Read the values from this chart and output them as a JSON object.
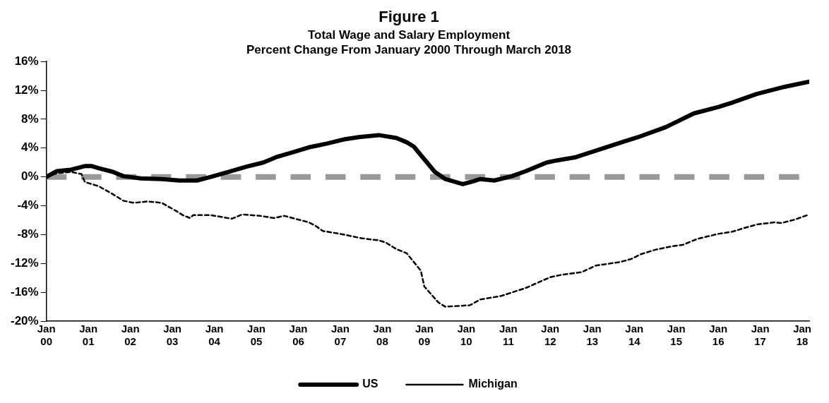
{
  "chart_data": {
    "type": "line",
    "title": "Figure 1",
    "subtitle": "Total Wage and Salary Employment",
    "annotations": [
      "Percent Change From January 2000 Through March 2018"
    ],
    "ylim": [
      -20,
      16
    ],
    "yticks": [
      {
        "value": -20,
        "label": "-20%"
      },
      {
        "value": -16,
        "label": "-16%"
      },
      {
        "value": -12,
        "label": "-12%"
      },
      {
        "value": -8,
        "label": "-8%"
      },
      {
        "value": -4,
        "label": "-4%"
      },
      {
        "value": 0,
        "label": "0%"
      },
      {
        "value": 4,
        "label": "4%"
      },
      {
        "value": 8,
        "label": "8%"
      },
      {
        "value": 12,
        "label": "12%"
      },
      {
        "value": 16,
        "label": "16%"
      }
    ],
    "xlim": [
      "2000-01",
      "2018-03"
    ],
    "xticks": [
      {
        "value": "2000-01",
        "label": "Jan 00"
      },
      {
        "value": "2001-01",
        "label": "Jan 01"
      },
      {
        "value": "2002-01",
        "label": "Jan 02"
      },
      {
        "value": "2003-01",
        "label": "Jan 03"
      },
      {
        "value": "2004-01",
        "label": "Jan 04"
      },
      {
        "value": "2005-01",
        "label": "Jan 05"
      },
      {
        "value": "2006-01",
        "label": "Jan 06"
      },
      {
        "value": "2007-01",
        "label": "Jan 07"
      },
      {
        "value": "2008-01",
        "label": "Jan 08"
      },
      {
        "value": "2009-01",
        "label": "Jan 09"
      },
      {
        "value": "2010-01",
        "label": "Jan 10"
      },
      {
        "value": "2011-01",
        "label": "Jan 11"
      },
      {
        "value": "2012-01",
        "label": "Jan 12"
      },
      {
        "value": "2013-01",
        "label": "Jan 13"
      },
      {
        "value": "2014-01",
        "label": "Jan 14"
      },
      {
        "value": "2015-01",
        "label": "Jan 15"
      },
      {
        "value": "2016-01",
        "label": "Jan 16"
      },
      {
        "value": "2017-01",
        "label": "Jan 17"
      },
      {
        "value": "2018-01",
        "label": "Jan 18"
      }
    ],
    "grid": false,
    "legend": "bottom",
    "marker": "none",
    "ref_lines": [
      {
        "axis": "y",
        "value": 0,
        "color": "#999999",
        "line_style": "dashed"
      }
    ],
    "series": [
      {
        "name": "US",
        "color": "#000000",
        "line_style": "solid",
        "x": [
          "2000-01",
          "2000-04",
          "2000-08",
          "2000-12",
          "2001-02",
          "2001-04",
          "2001-08",
          "2001-11",
          "2002-04",
          "2002-10",
          "2003-03",
          "2003-08",
          "2003-12",
          "2004-05",
          "2004-10",
          "2005-03",
          "2005-07",
          "2005-12",
          "2006-04",
          "2006-09",
          "2007-02",
          "2007-06",
          "2007-12",
          "2008-05",
          "2008-08",
          "2008-10",
          "2009-04",
          "2009-07",
          "2009-12",
          "2010-03",
          "2010-05",
          "2010-09",
          "2011-02",
          "2011-06",
          "2011-12",
          "2012-03",
          "2012-08",
          "2013-03",
          "2013-10",
          "2014-02",
          "2014-10",
          "2015-06",
          "2016-01",
          "2016-05",
          "2016-12",
          "2017-08",
          "2018-03"
        ],
        "values": [
          0,
          0.8,
          1.0,
          1.5,
          1.5,
          1.2,
          0.7,
          0.1,
          -0.2,
          -0.3,
          -0.5,
          -0.5,
          0,
          0.7,
          1.4,
          2.0,
          2.8,
          3.5,
          4.1,
          4.6,
          5.2,
          5.5,
          5.8,
          5.4,
          4.8,
          4.2,
          0.7,
          -0.3,
          -1.0,
          -0.6,
          -0.3,
          -0.5,
          0.1,
          0.8,
          2.0,
          2.3,
          2.7,
          3.8,
          4.9,
          5.5,
          6.9,
          8.8,
          9.7,
          10.3,
          11.5,
          12.5,
          13.2
        ]
      },
      {
        "name": "Michigan",
        "color": "#000000",
        "line_style": "dashed",
        "x": [
          "2000-01",
          "2000-04",
          "2000-08",
          "2000-11",
          "2000-12",
          "2001-04",
          "2001-08",
          "2001-11",
          "2002-02",
          "2002-06",
          "2002-10",
          "2003-02",
          "2003-04",
          "2003-06",
          "2003-07",
          "2003-12",
          "2004-06",
          "2004-09",
          "2005-02",
          "2005-06",
          "2005-09",
          "2006-04",
          "2006-06",
          "2006-08",
          "2007-01",
          "2007-07",
          "2007-12",
          "2008-02",
          "2008-05",
          "2008-08",
          "2008-12",
          "2009-01",
          "2009-05",
          "2009-07",
          "2010-02",
          "2010-05",
          "2010-11",
          "2011-06",
          "2012-01",
          "2012-04",
          "2012-10",
          "2013-02",
          "2013-09",
          "2013-12",
          "2014-03",
          "2014-07",
          "2014-12",
          "2015-03",
          "2015-07",
          "2016-01",
          "2016-05",
          "2016-09",
          "2016-12",
          "2017-05",
          "2017-07",
          "2017-11",
          "2018-03"
        ],
        "values": [
          0,
          0.5,
          0.7,
          0.4,
          -0.7,
          -1.3,
          -2.4,
          -3.3,
          -3.6,
          -3.4,
          -3.6,
          -4.7,
          -5.3,
          -5.7,
          -5.3,
          -5.3,
          -5.8,
          -5.2,
          -5.4,
          -5.7,
          -5.4,
          -6.3,
          -6.8,
          -7.5,
          -7.9,
          -8.5,
          -8.8,
          -9.1,
          -10.0,
          -10.6,
          -13.0,
          -15.2,
          -17.4,
          -18.0,
          -17.8,
          -17.0,
          -16.5,
          -15.4,
          -13.9,
          -13.6,
          -13.2,
          -12.3,
          -11.8,
          -11.4,
          -10.7,
          -10.1,
          -9.6,
          -9.4,
          -8.6,
          -7.9,
          -7.6,
          -7.0,
          -6.6,
          -6.3,
          -6.4,
          -5.9,
          -5.2
        ]
      }
    ]
  }
}
